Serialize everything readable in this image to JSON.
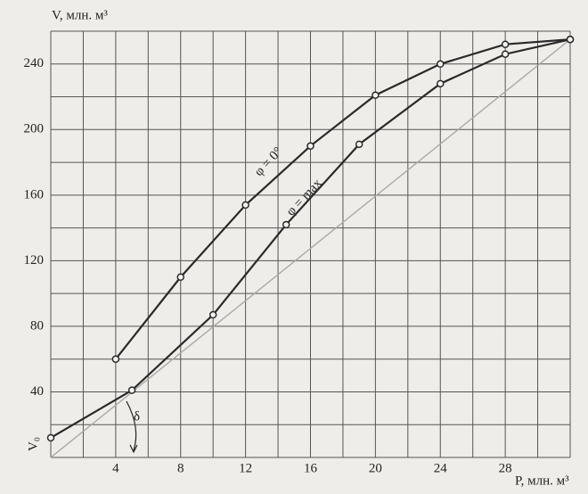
{
  "chart_data": {
    "type": "line",
    "y_label": "V, млн. м³",
    "x_label": "P, млн. м³",
    "annotations": [
      "φ = 0°",
      "φ = max",
      "V₀",
      "δ"
    ],
    "xlim": [
      0,
      32
    ],
    "ylim": [
      0,
      260
    ],
    "xticks": [
      4,
      8,
      12,
      16,
      20,
      24,
      28
    ],
    "yticks": [
      40,
      80,
      120,
      160,
      200,
      240
    ],
    "xgrid": [
      0,
      2,
      4,
      6,
      8,
      10,
      12,
      14,
      16,
      18,
      20,
      22,
      24,
      26,
      28,
      30,
      32
    ],
    "ygrid": [
      0,
      20,
      40,
      60,
      80,
      100,
      120,
      140,
      160,
      180,
      200,
      220,
      240,
      260
    ],
    "grid": true,
    "series": [
      {
        "name": "φ = 0°",
        "color": "#2a2a2a",
        "markers": true,
        "x": [
          4,
          8,
          12,
          16,
          20,
          24,
          28,
          32
        ],
        "values": [
          60,
          110,
          154,
          190,
          221,
          240,
          252,
          255
        ]
      },
      {
        "name": "φ = max",
        "color": "#2a2a2a",
        "markers": true,
        "x": [
          0,
          5,
          10,
          14.5,
          19,
          24,
          28,
          32
        ],
        "values": [
          12,
          41,
          87,
          142,
          191,
          228,
          246,
          255
        ]
      },
      {
        "color": "#a8a8a8",
        "markers": false,
        "x": [
          0,
          32
        ],
        "values": [
          0,
          255
        ]
      }
    ]
  }
}
